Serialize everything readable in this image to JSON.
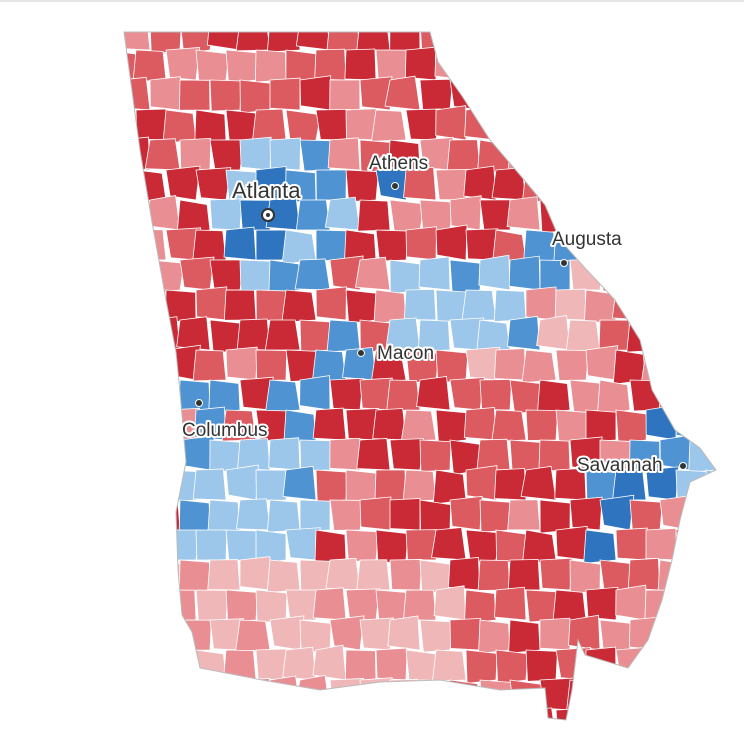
{
  "map": {
    "cities": [
      {
        "label": "Atlanta"
      },
      {
        "label": "Athens"
      },
      {
        "label": "Augusta"
      },
      {
        "label": "Macon"
      },
      {
        "label": "Columbus"
      },
      {
        "label": "Savannah"
      }
    ]
  }
}
